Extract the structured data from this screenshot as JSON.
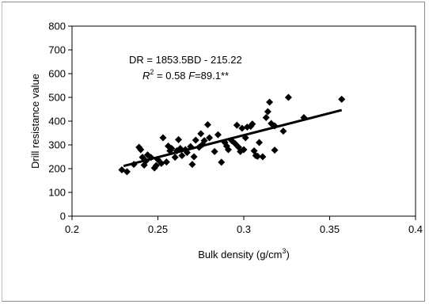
{
  "chart_data": {
    "type": "scatter",
    "xlabel": "Bulk density (g/cm",
    "xlabel_sup": "3",
    "xlabel_end": ")",
    "ylabel": "Drill resistance value",
    "xlim": [
      0.2,
      0.4
    ],
    "ylim": [
      0,
      800
    ],
    "xticks": [
      "0.2",
      "0.25",
      "0.3",
      "0.35",
      "0.4"
    ],
    "yticks": [
      "0",
      "100",
      "200",
      "300",
      "400",
      "500",
      "600",
      "700",
      "800"
    ],
    "grid": false,
    "legend": "none",
    "marker": "diamond",
    "marker_color": "#000000",
    "annotation": {
      "equation": "DR = 1853.5BD - 215.22",
      "r_label": "R",
      "r_sup": "2",
      "r_value": " = 0.58 ",
      "f_label": "F",
      "f_value": "=89.1**"
    },
    "trendline": {
      "slope": 1853.5,
      "intercept": -215.22,
      "x_range": [
        0.23,
        0.357
      ]
    },
    "points": [
      [
        0.229,
        195
      ],
      [
        0.232,
        187
      ],
      [
        0.236,
        218
      ],
      [
        0.239,
        290
      ],
      [
        0.24,
        280
      ],
      [
        0.241,
        248
      ],
      [
        0.242,
        215
      ],
      [
        0.243,
        232
      ],
      [
        0.244,
        258
      ],
      [
        0.246,
        247
      ],
      [
        0.248,
        203
      ],
      [
        0.249,
        213
      ],
      [
        0.25,
        238
      ],
      [
        0.252,
        222
      ],
      [
        0.253,
        330
      ],
      [
        0.255,
        228
      ],
      [
        0.256,
        295
      ],
      [
        0.257,
        275
      ],
      [
        0.258,
        285
      ],
      [
        0.26,
        248
      ],
      [
        0.261,
        275
      ],
      [
        0.262,
        322
      ],
      [
        0.263,
        285
      ],
      [
        0.264,
        255
      ],
      [
        0.266,
        280
      ],
      [
        0.267,
        268
      ],
      [
        0.269,
        293
      ],
      [
        0.27,
        218
      ],
      [
        0.271,
        250
      ],
      [
        0.272,
        320
      ],
      [
        0.274,
        290
      ],
      [
        0.275,
        347
      ],
      [
        0.276,
        302
      ],
      [
        0.277,
        318
      ],
      [
        0.279,
        385
      ],
      [
        0.28,
        330
      ],
      [
        0.283,
        272
      ],
      [
        0.285,
        343
      ],
      [
        0.287,
        227
      ],
      [
        0.289,
        310
      ],
      [
        0.29,
        295
      ],
      [
        0.291,
        280
      ],
      [
        0.293,
        318
      ],
      [
        0.295,
        305
      ],
      [
        0.296,
        383
      ],
      [
        0.297,
        290
      ],
      [
        0.298,
        272
      ],
      [
        0.299,
        370
      ],
      [
        0.3,
        280
      ],
      [
        0.301,
        330
      ],
      [
        0.302,
        375
      ],
      [
        0.304,
        378
      ],
      [
        0.305,
        388
      ],
      [
        0.306,
        275
      ],
      [
        0.307,
        255
      ],
      [
        0.308,
        252
      ],
      [
        0.309,
        310
      ],
      [
        0.311,
        250
      ],
      [
        0.313,
        415
      ],
      [
        0.314,
        440
      ],
      [
        0.315,
        480
      ],
      [
        0.316,
        390
      ],
      [
        0.318,
        278
      ],
      [
        0.318,
        380
      ],
      [
        0.323,
        358
      ],
      [
        0.326,
        500
      ],
      [
        0.335,
        415
      ],
      [
        0.357,
        492
      ]
    ]
  }
}
